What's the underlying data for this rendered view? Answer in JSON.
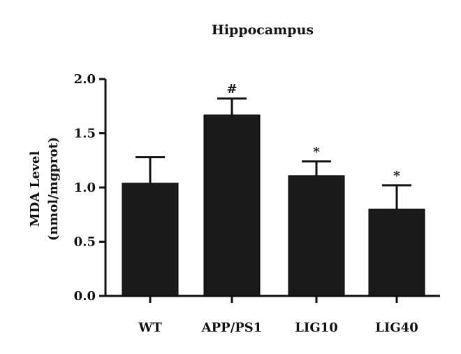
{
  "chart_data": {
    "type": "bar",
    "title": "Hippocampus",
    "ylabel_line1": "MDA Level",
    "ylabel_line2": "(nmol/mgprot)",
    "xlabel": "",
    "categories": [
      "WT",
      "APP/PS1",
      "LIG10",
      "LIG40"
    ],
    "values": [
      1.04,
      1.67,
      1.11,
      0.8
    ],
    "error_upper": [
      0.24,
      0.15,
      0.13,
      0.22
    ],
    "annotations": [
      "",
      "#",
      "*",
      "*"
    ],
    "ylim": [
      0,
      2.0
    ],
    "yticks": [
      0.0,
      0.5,
      1.0,
      1.5,
      2.0
    ],
    "ytick_labels": [
      "0.0",
      "0.5",
      "1.0",
      "1.5",
      "2.0"
    ],
    "bar_color": "#1a1a1a",
    "grid": false,
    "legend": "none"
  }
}
